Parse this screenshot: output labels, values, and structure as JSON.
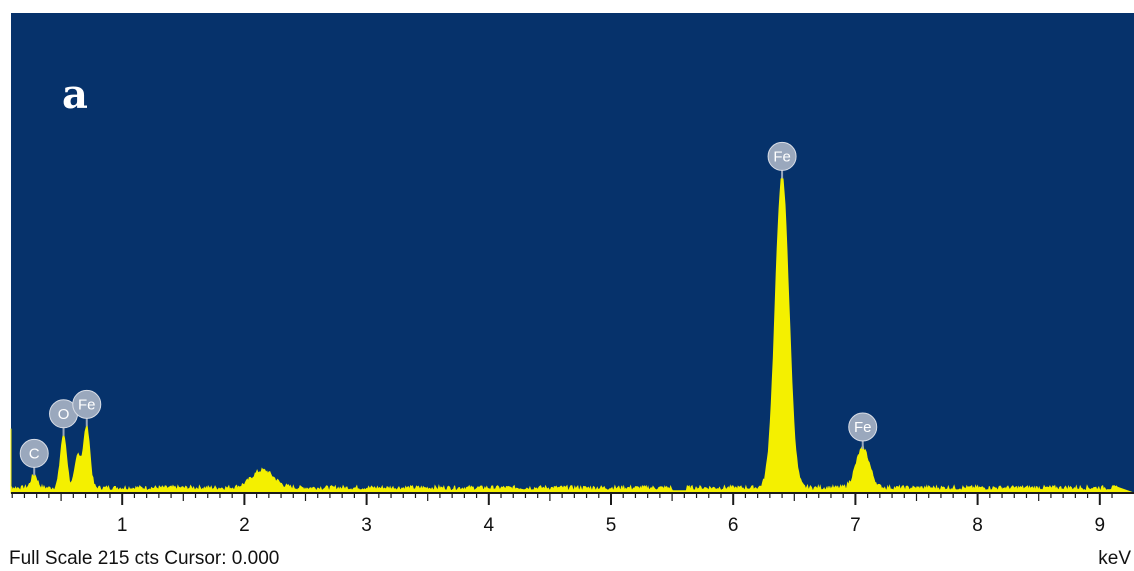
{
  "panel_label": "a",
  "status": {
    "full_scale_text": "Full Scale 215 cts Cursor: 0.000",
    "unit": "keV"
  },
  "colors": {
    "plot_background": "#06326b",
    "spectrum_fill": "#f4f000",
    "label_badge": "#9aa8bd",
    "axis_line": "#1a1a1a"
  },
  "chart_data": {
    "type": "area",
    "title": "",
    "xlabel": "keV",
    "ylabel": "",
    "xlim": [
      0,
      9.15
    ],
    "ylim": [
      0,
      215
    ],
    "full_scale_cts": 215,
    "cursor_keV": 0.0,
    "x_ticks": [
      1,
      2,
      3,
      4,
      5,
      6,
      7,
      8,
      9
    ],
    "grid": false,
    "legend": "none",
    "series": [
      {
        "peaks": [
          {
            "keV": 0.01,
            "cts": 29
          },
          {
            "keV": 0.28,
            "cts": 8
          },
          {
            "keV": 0.52,
            "cts": 26
          },
          {
            "keV": 0.64,
            "cts": 17
          },
          {
            "keV": 0.71,
            "cts": 30
          },
          {
            "keV": 2.15,
            "cts": 10
          },
          {
            "keV": 6.4,
            "cts": 143
          },
          {
            "keV": 7.06,
            "cts": 20
          }
        ],
        "baseline_cts": 2
      }
    ],
    "peak_labels": [
      {
        "element": "C",
        "keV": 0.28
      },
      {
        "element": "O",
        "keV": 0.52
      },
      {
        "element": "Fe",
        "keV": 0.71
      },
      {
        "element": "Fe",
        "keV": 6.4
      },
      {
        "element": "Fe",
        "keV": 7.06
      }
    ]
  }
}
